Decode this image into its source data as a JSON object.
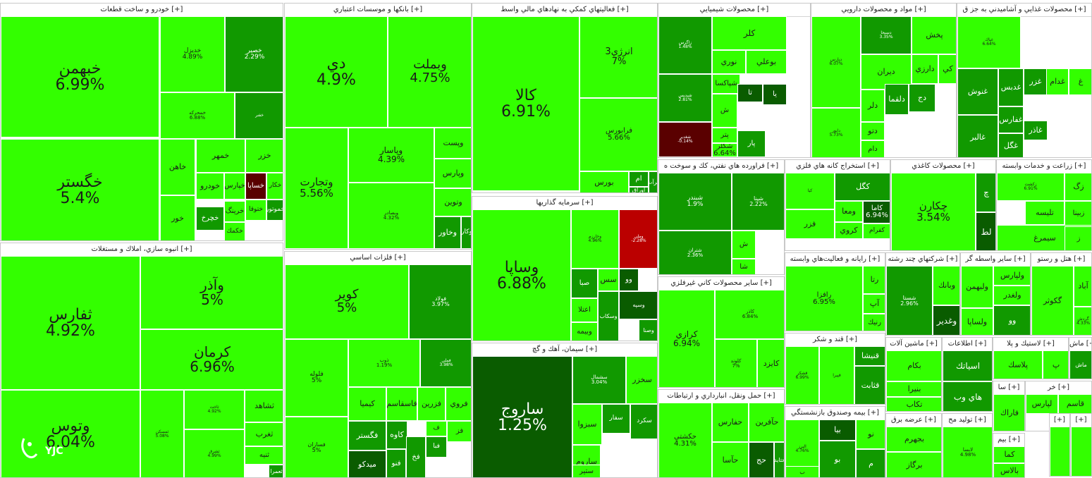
{
  "palette": {
    "bright": "#33ff00",
    "mid": "#22cc00",
    "deep": "#119900",
    "dark": "#0a5c00",
    "neg": "#bb0000",
    "negdark": "#5a0000"
  },
  "header_expand": "[+]",
  "logo": {
    "text": "YJC",
    "icon": "yjc-logo-icon"
  },
  "sectors": [
    {
      "title": "خودرو و ساخت قطعات",
      "tiles": [
        {
          "sym": "خبهمن",
          "pct": "6.99%"
        },
        {
          "sym": "خگستر",
          "pct": "5.4%"
        },
        {
          "sym": "خديزل",
          "pct": "4.89%"
        },
        {
          "sym": "خصير",
          "pct": "2.29%"
        },
        {
          "sym": "خمحركه",
          "pct": "6.88%"
        },
        {
          "sym": "خمهر",
          "pct": ""
        },
        {
          "sym": "خاهن",
          "pct": ""
        },
        {
          "sym": "خزر",
          "pct": ""
        },
        {
          "sym": "خساپا",
          "pct": ""
        },
        {
          "sym": "خودرو",
          "pct": ""
        },
        {
          "sym": "خور",
          "pct": ""
        },
        {
          "sym": "خچرخ",
          "pct": ""
        },
        {
          "sym": "خپارس",
          "pct": ""
        },
        {
          "sym": "خرينگ",
          "pct": ""
        },
        {
          "sym": "خكار",
          "pct": ""
        },
        {
          "sym": "ختوقا",
          "pct": ""
        },
        {
          "sym": "خموتور",
          "pct": ""
        },
        {
          "sym": "خكمك",
          "pct": ""
        },
        {
          "sym": "خفنر",
          "pct": ""
        }
      ]
    },
    {
      "title": "انبوه سازي، املاك و مستغلات",
      "tiles": [
        {
          "sym": "ثفارس",
          "pct": "4.92%"
        },
        {
          "sym": "وآذر",
          "pct": "5%"
        },
        {
          "sym": "كرمان",
          "pct": "6.96%"
        },
        {
          "sym": "وتوس",
          "pct": "6.04%"
        },
        {
          "sym": "ثمسكن",
          "pct": "5.08%"
        },
        {
          "sym": "ثاخت",
          "pct": "4.92%"
        },
        {
          "sym": "ثشرق",
          "pct": "4.99%"
        },
        {
          "sym": "ثشاهد",
          "pct": ""
        },
        {
          "sym": "ثغرب",
          "pct": ""
        },
        {
          "sym": "ثنيه",
          "pct": ""
        },
        {
          "sym": "ثعمرا",
          "pct": ""
        }
      ]
    },
    {
      "title": "بانكها و موسسات اعتباري",
      "tiles": [
        {
          "sym": "دي",
          "pct": "4.9%"
        },
        {
          "sym": "وبملت",
          "pct": "4.75%"
        },
        {
          "sym": "وتجارت",
          "pct": "5.56%"
        },
        {
          "sym": "وبصادر",
          "pct": "4.32%"
        },
        {
          "sym": "وپاسار",
          "pct": "4.39%"
        },
        {
          "sym": "وپست",
          "pct": ""
        },
        {
          "sym": "وپارس",
          "pct": ""
        },
        {
          "sym": "وتوين",
          "pct": ""
        },
        {
          "sym": "وخاور",
          "pct": ""
        },
        {
          "sym": "وكار",
          "pct": ""
        }
      ]
    },
    {
      "title": "فعاليتهاي كمكي به نهادهاي مالي واسط",
      "tiles": [
        {
          "sym": "كالا",
          "pct": "6.91%"
        },
        {
          "sym": "انرژي3",
          "pct": "7%"
        },
        {
          "sym": "فرابورس",
          "pct": "5.66%"
        },
        {
          "sym": "بورس",
          "pct": ""
        },
        {
          "sym": "ام",
          "pct": ""
        },
        {
          "sym": "اوراق",
          "pct": ""
        },
        {
          "sym": "مرآت",
          "pct": ""
        }
      ]
    },
    {
      "title": "سرمايه گذاريها",
      "tiles": [
        {
          "sym": "وساپا",
          "pct": "6.88%"
        },
        {
          "sym": "وخارزم",
          "pct": "4.96%"
        },
        {
          "sym": "وملي",
          "pct": "-2.28%"
        },
        {
          "sym": "صبا",
          "pct": ""
        },
        {
          "sym": "سس",
          "pct": ""
        },
        {
          "sym": "وو",
          "pct": ""
        },
        {
          "sym": "اعتلا",
          "pct": ""
        },
        {
          "sym": "وبيمه",
          "pct": ""
        },
        {
          "sym": "وسكاب",
          "pct": ""
        },
        {
          "sym": "وسپه",
          "pct": ""
        },
        {
          "sym": "وصنا",
          "pct": ""
        }
      ]
    },
    {
      "title": "فلزات اساسي",
      "tiles": [
        {
          "sym": "كوير",
          "pct": "5%"
        },
        {
          "sym": "فولاد",
          "pct": "3.97%"
        },
        {
          "sym": "فلوله",
          "pct": "5%"
        },
        {
          "sym": "فسازان",
          "pct": "5%"
        },
        {
          "sym": "ذوب",
          "pct": "1.19%"
        },
        {
          "sym": "فملي",
          "pct": "3.98%"
        },
        {
          "sym": "كيميا",
          "pct": ""
        },
        {
          "sym": "فاسقاسم",
          "pct": ""
        },
        {
          "sym": "فزرين",
          "pct": ""
        },
        {
          "sym": "فروي",
          "pct": ""
        },
        {
          "sym": "فگستر",
          "pct": ""
        },
        {
          "sym": "كاوه",
          "pct": ""
        },
        {
          "sym": "ميدكو",
          "pct": ""
        },
        {
          "sym": "فنو",
          "pct": ""
        },
        {
          "sym": "فخ",
          "pct": ""
        },
        {
          "sym": "فبا",
          "pct": ""
        },
        {
          "sym": "ف",
          "pct": ""
        },
        {
          "sym": "فز",
          "pct": ""
        }
      ]
    },
    {
      "title": "سيمان، آهك و گچ",
      "tiles": [
        {
          "sym": "ساروج",
          "pct": "1.25%"
        },
        {
          "sym": "سشمال",
          "pct": "3.04%"
        },
        {
          "sym": "سخزر",
          "pct": ""
        },
        {
          "sym": "سبزوا",
          "pct": ""
        },
        {
          "sym": "ساروم",
          "pct": ""
        },
        {
          "sym": "ستير",
          "pct": ""
        },
        {
          "sym": "سفار",
          "pct": ""
        },
        {
          "sym": "سكرد",
          "pct": ""
        }
      ]
    },
    {
      "title": "محصولات شيميايي",
      "tiles": [
        {
          "sym": "زاگرس",
          "pct": "1.48%"
        },
        {
          "sym": "شپديس",
          "pct": "2.81%"
        },
        {
          "sym": "شغدير",
          "pct": "-0.14%"
        },
        {
          "sym": "كلر",
          "pct": ""
        },
        {
          "sym": "بوعلي",
          "pct": ""
        },
        {
          "sym": "نوري",
          "pct": ""
        },
        {
          "sym": "شپاكسا",
          "pct": ""
        },
        {
          "sym": "تا",
          "pct": ""
        },
        {
          "sym": "يا",
          "pct": ""
        },
        {
          "sym": "ش",
          "pct": ""
        },
        {
          "sym": "پتر",
          "pct": ""
        },
        {
          "sym": "پار",
          "pct": ""
        },
        {
          "sym": "شكلر",
          "pct": "6.64%"
        }
      ]
    },
    {
      "title": "مواد و محصولات دارويي",
      "tiles": [
        {
          "sym": "دپارس",
          "pct": "6.07%"
        },
        {
          "sym": "دسبحا",
          "pct": "3.35%"
        },
        {
          "sym": "پخش",
          "pct": ""
        },
        {
          "sym": "ديران",
          "pct": ""
        },
        {
          "sym": "دارزي",
          "pct": ""
        },
        {
          "sym": "كي",
          "pct": ""
        },
        {
          "sym": "دلقما",
          "pct": ""
        },
        {
          "sym": "دج",
          "pct": ""
        },
        {
          "sym": "دلر",
          "pct": ""
        },
        {
          "sym": "دتو",
          "pct": ""
        },
        {
          "sym": "دام",
          "pct": ""
        },
        {
          "sym": "دابور",
          "pct": "5.73%"
        }
      ]
    },
    {
      "title": "محصولات غذايي و آشاميدني به جز ق",
      "tiles": [
        {
          "sym": "غنوش",
          "pct": ""
        },
        {
          "sym": "غدبس",
          "pct": ""
        },
        {
          "sym": "غالبر",
          "pct": ""
        },
        {
          "sym": "غفارس",
          "pct": ""
        },
        {
          "sym": "غگل",
          "pct": ""
        },
        {
          "sym": "غزر",
          "pct": ""
        },
        {
          "sym": "غدام",
          "pct": ""
        },
        {
          "sym": "غاذر",
          "pct": ""
        },
        {
          "sym": "غپاك",
          "pct": "6.64%"
        },
        {
          "sym": "غ",
          "pct": ""
        }
      ]
    },
    {
      "title": "فراورده هاي نفتي، كك و سوخت ه",
      "tiles": [
        {
          "sym": "شبندر",
          "pct": "1.9%"
        },
        {
          "sym": "شپنا",
          "pct": "2.22%"
        },
        {
          "sym": "شتران",
          "pct": "2.36%"
        },
        {
          "sym": "ش",
          "pct": ""
        },
        {
          "sym": "شا",
          "pct": ""
        }
      ]
    },
    {
      "title": "استخراج كانه هاي فلزي",
      "tiles": [
        {
          "sym": "كگل",
          "pct": ""
        },
        {
          "sym": "ومعا",
          "pct": ""
        },
        {
          "sym": "كروي",
          "pct": ""
        },
        {
          "sym": "كيا",
          "pct": ""
        },
        {
          "sym": "فزر",
          "pct": ""
        },
        {
          "sym": "كاما",
          "pct": "6.94%"
        },
        {
          "sym": "كفرام",
          "pct": ""
        }
      ]
    },
    {
      "title": "محصولات كاغذي",
      "tiles": [
        {
          "sym": "چكارن",
          "pct": "3.54%"
        },
        {
          "sym": "لط",
          "pct": ""
        },
        {
          "sym": "چ",
          "pct": ""
        }
      ]
    },
    {
      "title": "زراعت و خدمات وابسته",
      "tiles": [
        {
          "sym": "زگ",
          "pct": ""
        },
        {
          "sym": "زبينا",
          "pct": ""
        },
        {
          "sym": "تلیسه",
          "pct": ""
        },
        {
          "sym": "سيمرغ",
          "pct": ""
        },
        {
          "sym": "زكشت",
          "pct": "6.91%"
        },
        {
          "sym": "ز",
          "pct": ""
        }
      ]
    },
    {
      "title": "سایر محصولات كاني غيرفلزي",
      "tiles": [
        {
          "sym": "كرازي",
          "pct": "6.94%"
        },
        {
          "sym": "كاذر",
          "pct": "6.84%"
        },
        {
          "sym": "كايزد",
          "pct": ""
        },
        {
          "sym": "كلوند",
          "pct": "7%"
        }
      ]
    },
    {
      "title": "حمل ونقل، انبارداري و ارتباطات",
      "tiles": [
        {
          "sym": "حكشتي",
          "pct": "4.31%"
        },
        {
          "sym": "حفارس",
          "pct": ""
        },
        {
          "sym": "حآفرين",
          "pct": ""
        },
        {
          "sym": "حآسا",
          "pct": ""
        },
        {
          "sym": "حج",
          "pct": ""
        },
        {
          "sym": "حتايد",
          "pct": ""
        }
      ]
    },
    {
      "title": "رايانه و فعاليت‌هاي وابسته",
      "tiles": [
        {
          "sym": "رافزا",
          "pct": "6.95%"
        },
        {
          "sym": "رتا",
          "pct": ""
        },
        {
          "sym": "آپ",
          "pct": ""
        },
        {
          "sym": "رنيك",
          "pct": ""
        }
      ]
    },
    {
      "title": "قند و شكر",
      "tiles": [
        {
          "sym": "قشكر",
          "pct": "6.99%"
        },
        {
          "sym": "قنيشا",
          "pct": ""
        },
        {
          "sym": "قپيرا",
          "pct": ""
        },
        {
          "sym": "قثابت",
          "pct": ""
        }
      ]
    },
    {
      "title": "بيمه وصندوق بازنشستگي",
      "tiles": [
        {
          "sym": "البرز",
          "pct": "4.76%"
        },
        {
          "sym": "بيا",
          "pct": ""
        },
        {
          "sym": "نو",
          "pct": ""
        },
        {
          "sym": "بو",
          "pct": ""
        },
        {
          "sym": "م",
          "pct": ""
        },
        {
          "sym": "ب",
          "pct": ""
        }
      ]
    },
    {
      "title": "شركتهاي چند رشته",
      "tiles": [
        {
          "sym": "وبانك",
          "pct": ""
        },
        {
          "sym": "شستا",
          "pct": "2.96%"
        },
        {
          "sym": "وغدير",
          "pct": ""
        }
      ]
    },
    {
      "title": "ساير واسطه گر",
      "tiles": [
        {
          "sym": "ولپارس",
          "pct": ""
        },
        {
          "sym": "ولبهمن",
          "pct": ""
        },
        {
          "sym": "ولغدر",
          "pct": ""
        },
        {
          "sym": "ولساپا",
          "pct": ""
        },
        {
          "sym": "وو",
          "pct": ""
        }
      ]
    },
    {
      "title": "هتل و رستو",
      "tiles": [
        {
          "sym": "گكوثر",
          "pct": ""
        },
        {
          "sym": "آباد",
          "pct": ""
        },
        {
          "sym": "گردش",
          "pct": "4.33%"
        }
      ]
    },
    {
      "title": "ماشين آلات",
      "tiles": [
        {
          "sym": "بكام",
          "pct": ""
        },
        {
          "sym": "بنيرا",
          "pct": ""
        },
        {
          "sym": "تكاب",
          "pct": ""
        }
      ]
    },
    {
      "title": "اطلاعات",
      "tiles": [
        {
          "sym": "اسياتك",
          "pct": ""
        },
        {
          "sym": "هاي وب",
          "pct": ""
        }
      ]
    },
    {
      "title": "لاستيك و پلا",
      "tiles": [
        {
          "sym": "پلاسك",
          "pct": ""
        },
        {
          "sym": "پ",
          "pct": ""
        }
      ]
    },
    {
      "title": "ماش",
      "tiles": [
        {
          "sym": "ماش",
          "pct": ""
        }
      ]
    },
    {
      "title": "عرضه برق",
      "tiles": [
        {
          "sym": "بجهرم",
          "pct": ""
        },
        {
          "sym": "برگاز",
          "pct": ""
        }
      ]
    },
    {
      "title": "توليد مح",
      "tiles": [
        {
          "sym": "لابسا",
          "pct": "4.98%"
        }
      ]
    },
    {
      "title": "سا",
      "tiles": [
        {
          "sym": "فاراك",
          "pct": ""
        }
      ]
    },
    {
      "title": "خر",
      "tiles": [
        {
          "sym": "لپارس",
          "pct": ""
        },
        {
          "sym": "قاسم",
          "pct": ""
        }
      ]
    },
    {
      "title": "بيم",
      "tiles": [
        {
          "sym": "كما",
          "pct": ""
        },
        {
          "sym": "بالاس",
          "pct": ""
        }
      ]
    },
    {
      "title": "",
      "tiles": [
        {
          "sym": "سا",
          "pct": ""
        }
      ]
    },
    {
      "title": "",
      "tiles": [
        {
          "sym": "",
          "pct": ""
        }
      ]
    },
    {
      "title": "",
      "tiles": [
        {
          "sym": "",
          "pct": ""
        }
      ]
    },
    {
      "title": "",
      "tiles": [
        {
          "sym": "",
          "pct": ""
        }
      ]
    }
  ]
}
